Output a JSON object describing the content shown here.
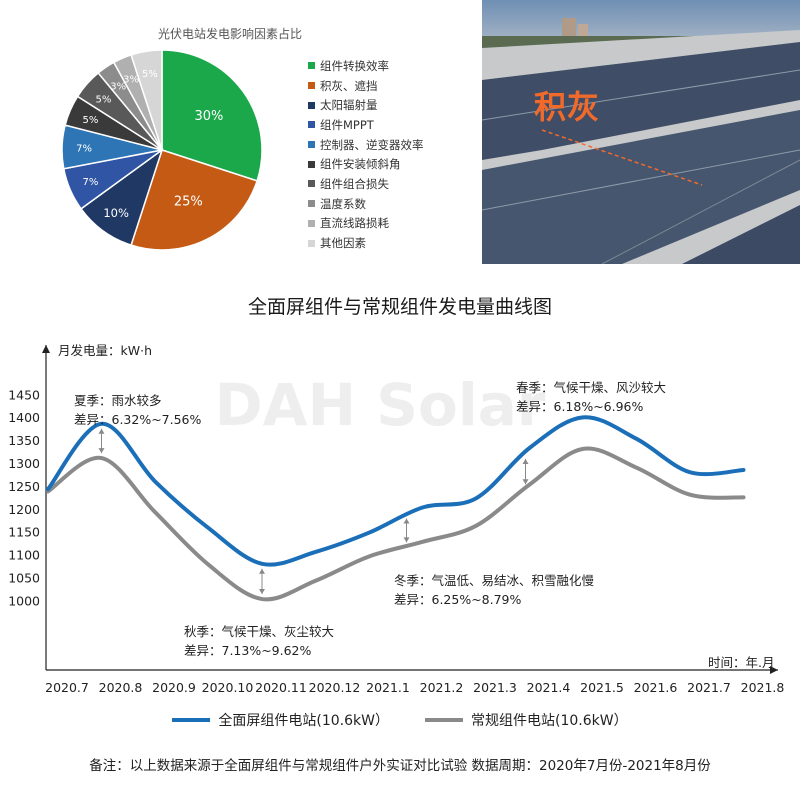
{
  "colors": {
    "full_screen": "#1b6fb8",
    "conventional": "#8a8a8a",
    "accent_orange": "#f26a2a"
  },
  "photo": {
    "label": "积灰"
  },
  "chart_data": [
    {
      "type": "pie",
      "title": "光伏电站发电影响因素占比",
      "slices": [
        {
          "label": "组件转换效率",
          "value": 30,
          "value_label": "30%",
          "color": "#1aa84a"
        },
        {
          "label": "积灰、遮挡",
          "value": 25,
          "value_label": "25%",
          "color": "#c45a14"
        },
        {
          "label": "太阳辐射量",
          "value": 10,
          "value_label": "10%",
          "color": "#1f3864"
        },
        {
          "label": "组件MPPT",
          "value": 7,
          "value_label": "7%",
          "color": "#2f55a4"
        },
        {
          "label": "控制器、逆变器效率",
          "value": 7,
          "value_label": "7%",
          "color": "#2e75b6"
        },
        {
          "label": "组件安装倾斜角",
          "value": 5,
          "value_label": "5%",
          "color": "#3a3a3a"
        },
        {
          "label": "组件组合损失",
          "value": 5,
          "value_label": "5%",
          "color": "#595959"
        },
        {
          "label": "温度系数",
          "value": 3,
          "value_label": "3%",
          "color": "#8c8c8c"
        },
        {
          "label": "直流线路损耗",
          "value": 3,
          "value_label": "3%",
          "color": "#b0b0b0"
        },
        {
          "label": "其他因素",
          "value": 5,
          "value_label": "5%",
          "color": "#d6d6d6"
        }
      ]
    },
    {
      "type": "line",
      "title": "全面屏组件与常规组件发电量曲线图",
      "ylabel": "月发电量：kW·h",
      "xlabel": "时间：年.月",
      "ylim": [
        850,
        1560
      ],
      "yticks": [
        1000,
        1050,
        1100,
        1150,
        1200,
        1250,
        1300,
        1350,
        1400,
        1450
      ],
      "categories": [
        "2020.7",
        "2020.8",
        "2020.9",
        "2020.10",
        "2020.11",
        "2020.12",
        "2021.1",
        "2021.2",
        "2021.3",
        "2021.4",
        "2021.5",
        "2021.6",
        "2021.7",
        "2021.8"
      ],
      "series": [
        {
          "name": "全面屏组件电站(10.6kW）",
          "color": "#1b6fb8",
          "values": [
            1245,
            1388,
            1262,
            1160,
            1082,
            1108,
            1150,
            1205,
            1225,
            1335,
            1402,
            1355,
            1282,
            1287
          ]
        },
        {
          "name": "常规组件电站(10.6kW）",
          "color": "#8a8a8a",
          "values": [
            1240,
            1313,
            1195,
            1080,
            1005,
            1045,
            1098,
            1130,
            1165,
            1255,
            1333,
            1292,
            1233,
            1227
          ]
        }
      ],
      "annotations": [
        {
          "season": "夏季：雨水较多",
          "diff": "差异：6.32%~7.56%"
        },
        {
          "season": "秋季：气候干燥、灰尘较大",
          "diff": "差异：7.13%~9.62%"
        },
        {
          "season": "冬季：气温低、易结冰、积雪融化慢",
          "diff": "差异：6.25%~8.79%"
        },
        {
          "season": "春季：气候干燥、风沙较大",
          "diff": "差异：6.18%~6.96%"
        }
      ],
      "watermark": "DAH Solar",
      "note": "备注：以上数据来源于全面屏组件与常规组件户外实证对比试验    数据周期：2020年7月份-2021年8月份"
    }
  ]
}
